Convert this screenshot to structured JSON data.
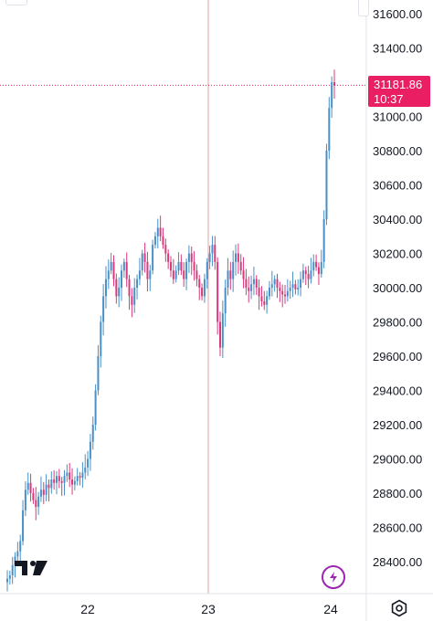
{
  "chart_data": {
    "type": "candlestick",
    "title": "",
    "xlabel": "",
    "ylabel": "",
    "ylim": [
      28280,
      31680
    ],
    "y_ticks": [
      "31600.00",
      "31400.00",
      "31200.00",
      "31000.00",
      "30800.00",
      "30600.00",
      "30400.00",
      "30200.00",
      "30000.00",
      "29800.00",
      "29600.00",
      "29400.00",
      "29200.00",
      "29000.00",
      "28800.00",
      "28600.00",
      "28400.00"
    ],
    "x_ticks": [
      "22",
      "23",
      "24"
    ],
    "last_price": "31181.86",
    "countdown": "10:37",
    "up_color": "#4a90c8",
    "down_color": "#d83a7c",
    "grid": false,
    "crosshair": {
      "price": 31181.86,
      "x_label": "23"
    },
    "series": [
      {
        "values": [
          28300,
          28320,
          28380,
          28430,
          28460,
          28520,
          28700,
          28820,
          28860,
          28800,
          28760,
          28720,
          28780,
          28820,
          28790,
          28850,
          28830,
          28880,
          28860,
          28900,
          28870,
          28860,
          28900,
          28920,
          28880,
          28850,
          28870,
          28900,
          28890,
          28920,
          28950,
          29000,
          29100,
          29200,
          29400,
          29600,
          29800,
          29950,
          30050,
          30100,
          30150,
          30050,
          29950,
          30000,
          30100,
          30150,
          30050,
          29950,
          29900,
          30000,
          30050,
          30100,
          30200,
          30150,
          30050,
          30100,
          30250,
          30300,
          30350,
          30300,
          30250,
          30200,
          30150,
          30100,
          30050,
          30100,
          30150,
          30100,
          30050,
          30150,
          30200,
          30150,
          30100,
          30050,
          30000,
          29950,
          30050,
          30150,
          30200,
          30250,
          30150,
          29800,
          29650,
          29850,
          30000,
          30100,
          30050,
          30150,
          30200,
          30150,
          30100,
          30050,
          30000,
          29980,
          30020,
          30050,
          30000,
          29950,
          29920,
          29900,
          29950,
          30000,
          30020,
          30050,
          30000,
          29980,
          29960,
          29950,
          29980,
          30000,
          30020,
          29990,
          30000,
          30050,
          30100,
          30080,
          30050,
          30100,
          30150,
          30120,
          30080,
          30150,
          30400,
          30800,
          31050,
          31200,
          31181
        ]
      }
    ]
  },
  "ui": {
    "tv_logo_icon": "tradingview-logo-icon",
    "flash_icon": "lightning-icon",
    "settings_icon": "settings-gear-icon"
  }
}
